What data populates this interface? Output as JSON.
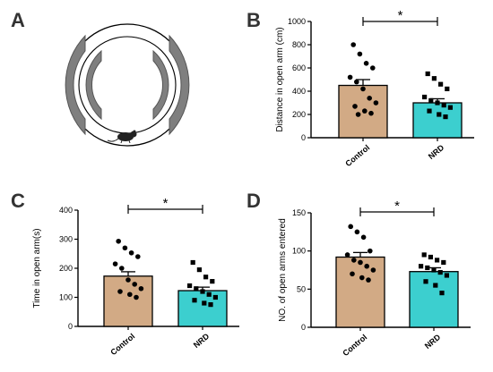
{
  "panels": {
    "A": {
      "letter": "A"
    },
    "B": {
      "letter": "B"
    },
    "C": {
      "letter": "C"
    },
    "D": {
      "letter": "D"
    }
  },
  "colors": {
    "control": "#d2aa85",
    "nrd": "#3ccfcf",
    "maze_arm": "#7f7f7f",
    "axis": "#000000"
  },
  "maze": {
    "icon": "rat-icon"
  },
  "chart_data": [
    {
      "panel": "B",
      "type": "bar",
      "categories": [
        "Control",
        "NRD"
      ],
      "values": [
        450,
        300
      ],
      "errors": [
        50,
        35
      ],
      "ylabel": "Distance in open arm (cm)",
      "ylim": [
        0,
        1000
      ],
      "yticks": [
        0,
        200,
        400,
        600,
        800,
        1000
      ],
      "significance": "*",
      "points": [
        [
          800,
          720,
          640,
          600,
          520,
          480,
          420,
          340,
          300,
          270,
          230,
          210,
          200
        ],
        [
          550,
          510,
          460,
          420,
          350,
          320,
          300,
          280,
          260,
          230,
          200,
          180
        ]
      ]
    },
    {
      "panel": "C",
      "type": "bar",
      "categories": [
        "Control",
        "NRD"
      ],
      "values": [
        173,
        123
      ],
      "errors": [
        15,
        12
      ],
      "ylabel": "Time in open arm(s)",
      "ylim": [
        0,
        400
      ],
      "yticks": [
        0,
        100,
        200,
        300,
        400
      ],
      "significance": "*",
      "points": [
        [
          293,
          270,
          253,
          240,
          215,
          200,
          160,
          145,
          130,
          120,
          110,
          100
        ],
        [
          220,
          195,
          170,
          155,
          140,
          130,
          120,
          110,
          100,
          90,
          80,
          75
        ]
      ]
    },
    {
      "panel": "D",
      "type": "bar",
      "categories": [
        "Control",
        "NRD"
      ],
      "values": [
        92,
        73
      ],
      "errors": [
        6,
        5
      ],
      "ylabel": "NO. of open arms entered",
      "ylim": [
        0,
        150
      ],
      "yticks": [
        0,
        50,
        100,
        150
      ],
      "significance": "*",
      "points": [
        [
          132,
          125,
          118,
          100,
          95,
          88,
          85,
          80,
          75,
          70,
          65,
          62
        ],
        [
          95,
          92,
          88,
          85,
          80,
          78,
          75,
          72,
          68,
          60,
          55,
          45
        ]
      ]
    }
  ]
}
